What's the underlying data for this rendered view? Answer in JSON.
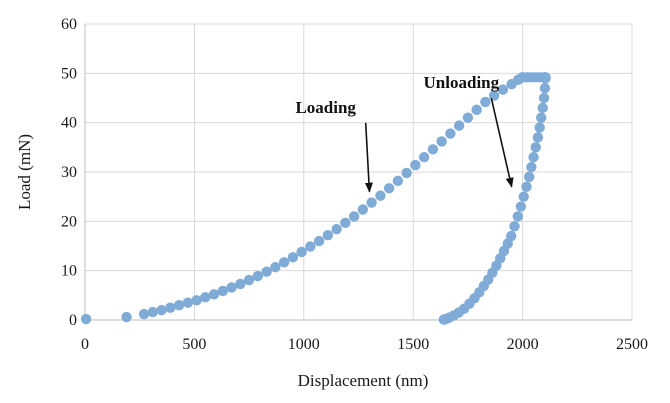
{
  "chart_data": {
    "type": "scatter",
    "title": "",
    "xlabel": "Displacement (nm)",
    "ylabel": "Load (mN)",
    "xlim": [
      0,
      2500
    ],
    "ylim": [
      0,
      60
    ],
    "x_ticks": [
      0,
      500,
      1000,
      1500,
      2000,
      2500
    ],
    "y_ticks": [
      0,
      10,
      20,
      30,
      40,
      50,
      60
    ],
    "grid": true,
    "legend": "none",
    "color": "#7fabd6",
    "annotations": [
      {
        "text": "Loading",
        "x": 1100,
        "y": 42,
        "arrow_to": [
          1300,
          26
        ]
      },
      {
        "text": "Unloading",
        "x": 1720,
        "y": 47,
        "arrow_to": [
          1950,
          27
        ]
      }
    ],
    "series": [
      {
        "segment": "loading",
        "x": [
          5,
          190,
          270,
          310,
          350,
          390,
          430,
          470,
          510,
          550,
          590,
          630,
          670,
          710,
          750,
          790,
          830,
          870,
          910,
          950,
          990,
          1030,
          1070,
          1110,
          1150,
          1190,
          1230,
          1270,
          1310,
          1350,
          1390,
          1430,
          1470,
          1510,
          1550,
          1590,
          1630,
          1670,
          1710,
          1750,
          1790,
          1830,
          1870,
          1910,
          1950,
          1980,
          2000
        ],
        "y": [
          0.2,
          0.6,
          1.2,
          1.6,
          2.0,
          2.5,
          3.0,
          3.5,
          4.0,
          4.6,
          5.2,
          5.9,
          6.6,
          7.3,
          8.1,
          8.9,
          9.8,
          10.7,
          11.7,
          12.7,
          13.8,
          14.9,
          16.0,
          17.2,
          18.4,
          19.7,
          21.0,
          22.4,
          23.8,
          25.2,
          26.7,
          28.2,
          29.8,
          31.4,
          33.0,
          34.6,
          36.2,
          37.8,
          39.4,
          41.0,
          42.6,
          44.2,
          45.5,
          46.7,
          47.8,
          48.7,
          49.2
        ]
      },
      {
        "segment": "hold",
        "x": [
          2000,
          2020,
          2040,
          2060,
          2080,
          2100,
          2105
        ],
        "y": [
          49.2,
          49.2,
          49.2,
          49.2,
          49.2,
          49.2,
          49.2
        ]
      },
      {
        "segment": "unloading",
        "x": [
          2105,
          2102,
          2098,
          2092,
          2085,
          2078,
          2070,
          2060,
          2050,
          2040,
          2030,
          2018,
          2005,
          1992,
          1978,
          1963,
          1948,
          1932,
          1915,
          1898,
          1880,
          1862,
          1843,
          1823,
          1802,
          1780,
          1757,
          1733,
          1708,
          1685,
          1665,
          1650,
          1640
        ],
        "y": [
          49.0,
          47.0,
          45.0,
          43.0,
          41.0,
          39.0,
          37.0,
          35.0,
          33.0,
          31.0,
          29.0,
          27.0,
          25.0,
          23.0,
          21.0,
          19.0,
          17.0,
          15.5,
          14.0,
          12.5,
          11.0,
          9.6,
          8.2,
          6.9,
          5.6,
          4.4,
          3.3,
          2.3,
          1.5,
          0.9,
          0.5,
          0.2,
          0.1
        ]
      }
    ]
  }
}
